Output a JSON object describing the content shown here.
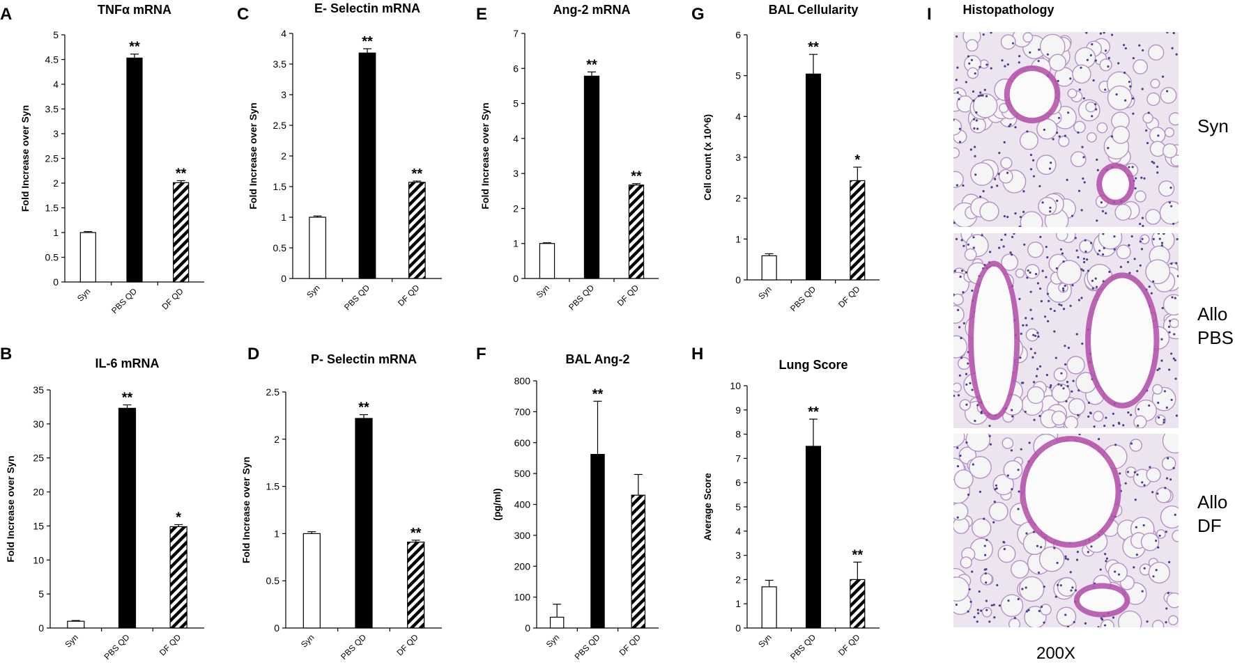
{
  "figure_title": "",
  "chart_data": [
    {
      "id": "A",
      "letter": "A",
      "type": "bar",
      "title": "TNFα mRNA",
      "ylabel": "Fold Increase over Syn",
      "xlabel": "",
      "categories": [
        "Syn",
        "PBS QD",
        "DF QD"
      ],
      "values": [
        1.0,
        4.53,
        2.01
      ],
      "errors": [
        0.02,
        0.08,
        0.04
      ],
      "significance": [
        "",
        "**",
        "**"
      ],
      "ylim": [
        0,
        5
      ],
      "yticks": [
        0,
        0.5,
        1,
        1.5,
        2,
        2.5,
        3,
        3.5,
        4,
        4.5,
        5
      ],
      "grid": false
    },
    {
      "id": "B",
      "letter": "B",
      "type": "bar",
      "title": "IL-6 mRNA",
      "ylabel": "Fold Increase over Syn",
      "xlabel": "",
      "categories": [
        "Syn",
        "PBS QD",
        "DF QD"
      ],
      "values": [
        1.0,
        32.3,
        14.9
      ],
      "errors": [
        0.1,
        0.5,
        0.3
      ],
      "significance": [
        "",
        "**",
        "*"
      ],
      "ylim": [
        0,
        35
      ],
      "yticks": [
        0,
        5,
        10,
        15,
        20,
        25,
        30,
        35
      ],
      "grid": false
    },
    {
      "id": "C",
      "letter": "C",
      "type": "bar",
      "title": "E- Selectin mRNA",
      "ylabel": "Fold Increase over Syn",
      "xlabel": "",
      "categories": [
        "Syn",
        "PBS QD",
        "DF QD"
      ],
      "values": [
        1.0,
        3.68,
        1.57
      ],
      "errors": [
        0.02,
        0.07,
        0.02
      ],
      "significance": [
        "",
        "**",
        "**"
      ],
      "ylim": [
        0,
        4
      ],
      "yticks": [
        0,
        0.5,
        1,
        1.5,
        2,
        2.5,
        3,
        3.5,
        4
      ],
      "grid": false
    },
    {
      "id": "D",
      "letter": "D",
      "type": "bar",
      "title": "P- Selectin mRNA",
      "ylabel": "Fold Increase over Syn",
      "xlabel": "",
      "categories": [
        "Syn",
        "PBS QD",
        "DF QD"
      ],
      "values": [
        1.0,
        2.22,
        0.91
      ],
      "errors": [
        0.02,
        0.04,
        0.02
      ],
      "significance": [
        "",
        "**",
        "**"
      ],
      "ylim": [
        0,
        2.5
      ],
      "yticks": [
        0,
        0.5,
        1,
        1.5,
        2,
        2.5
      ],
      "grid": false
    },
    {
      "id": "E",
      "letter": "E",
      "type": "bar",
      "title": "Ang-2 mRNA",
      "ylabel": "Fold Increase over Syn",
      "xlabel": "",
      "categories": [
        "Syn",
        "PBS QD",
        "DF QD"
      ],
      "values": [
        1.0,
        5.78,
        2.67
      ],
      "errors": [
        0.02,
        0.12,
        0.04
      ],
      "significance": [
        "",
        "**",
        "**"
      ],
      "ylim": [
        0,
        7
      ],
      "yticks": [
        0,
        1,
        2,
        3,
        4,
        5,
        6,
        7
      ],
      "grid": false
    },
    {
      "id": "F",
      "letter": "F",
      "type": "bar",
      "title": "BAL Ang-2",
      "ylabel": "(pg/ml)",
      "xlabel": "",
      "categories": [
        "Syn",
        "PBS QD",
        "DF QD"
      ],
      "values": [
        35,
        562,
        430
      ],
      "errors": [
        42,
        172,
        67
      ],
      "significance": [
        "",
        "**",
        ""
      ],
      "ylim": [
        0,
        800
      ],
      "yticks": [
        0,
        100,
        200,
        300,
        400,
        500,
        600,
        700,
        800
      ],
      "grid": false
    },
    {
      "id": "G",
      "letter": "G",
      "type": "bar",
      "title": "BAL Cellularity",
      "ylabel": "Cell count (x 10^6)",
      "xlabel": "",
      "categories": [
        "Syn",
        "PBS QD",
        "DF QD"
      ],
      "values": [
        0.59,
        5.04,
        2.43
      ],
      "errors": [
        0.05,
        0.48,
        0.33
      ],
      "significance": [
        "",
        "**",
        "*"
      ],
      "ylim": [
        0,
        6
      ],
      "yticks": [
        0,
        1,
        2,
        3,
        4,
        5,
        6
      ],
      "grid": false
    },
    {
      "id": "H",
      "letter": "H",
      "type": "bar",
      "title": "Lung Score",
      "ylabel": "Average Score",
      "xlabel": "",
      "categories": [
        "Syn",
        "PBS QD",
        "DF QD"
      ],
      "values": [
        1.7,
        7.5,
        2.0
      ],
      "errors": [
        0.27,
        1.12,
        0.72
      ],
      "significance": [
        "",
        "**",
        "**"
      ],
      "ylim": [
        0,
        10
      ],
      "yticks": [
        0,
        1,
        2,
        3,
        4,
        5,
        6,
        7,
        8,
        9,
        10
      ],
      "grid": false
    }
  ],
  "histology": {
    "letter": "I",
    "title": "Histopathology",
    "magnification": "200X",
    "panels": [
      {
        "label_lines": [
          "Syn"
        ]
      },
      {
        "label_lines": [
          "Allo",
          "PBS"
        ]
      },
      {
        "label_lines": [
          "Allo",
          "DF"
        ]
      }
    ]
  },
  "styles": {
    "syn_fill": "#ffffff",
    "pbs_fill": "#000000",
    "df_hatch": "#000000",
    "tissue_bg": "#ece4ee",
    "tissue_stroke": "#b591c6",
    "nuclei": "#4b3f8e",
    "epithelium": "#b24ca8",
    "lumen": "#f6f5f6"
  }
}
